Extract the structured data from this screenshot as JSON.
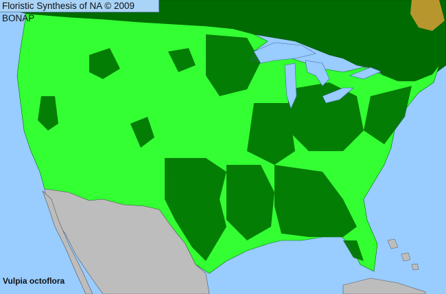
{
  "header": {
    "title": "Floristic Synthesis of NA © 2009 BONAP"
  },
  "species": {
    "name": "Vulpia octoflora"
  },
  "colors": {
    "ocean_lakes": "#99ccff",
    "canada_region": "#006b00",
    "county_present": "#33ff33",
    "county_native_state": "#007000",
    "mexico_no_data": "#bdbdbd",
    "adventive": "#b8962e"
  }
}
